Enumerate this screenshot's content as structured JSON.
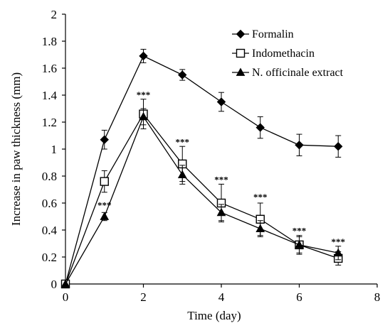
{
  "chart_data": {
    "type": "line",
    "xlabel": "Time (day)",
    "ylabel": "Increase in paw thickness (mm)",
    "xlim": [
      0,
      8
    ],
    "ylim": [
      0,
      2
    ],
    "xticks": [
      0,
      2,
      4,
      6,
      8
    ],
    "yticks": [
      0,
      0.2,
      0.4,
      0.6,
      0.8,
      1,
      1.2,
      1.4,
      1.6,
      1.8,
      2
    ],
    "ytick_labels": [
      "0",
      "0.2",
      "0.4",
      "0.6",
      "0.8",
      "1",
      "1.2",
      "1.4",
      "1.6",
      "1.8",
      "2"
    ],
    "grid": false,
    "legend_position": "top-right",
    "x": [
      0,
      1,
      2,
      3,
      4,
      5,
      6,
      7
    ],
    "series": [
      {
        "name": "Formalin",
        "marker": "diamond-filled",
        "values": [
          0,
          1.07,
          1.69,
          1.55,
          1.35,
          1.16,
          1.03,
          1.02
        ],
        "errors": [
          0,
          0.07,
          0.05,
          0.04,
          0.07,
          0.08,
          0.08,
          0.08
        ]
      },
      {
        "name": "Indomethacin",
        "marker": "square-open",
        "values": [
          0,
          0.76,
          1.26,
          0.89,
          0.6,
          0.48,
          0.29,
          0.19
        ],
        "errors": [
          0,
          0.08,
          0.11,
          0.13,
          0.14,
          0.12,
          0.07,
          0.05
        ]
      },
      {
        "name": "N. officinale extract",
        "marker": "triangle-filled",
        "values": [
          0,
          0.5,
          1.24,
          0.81,
          0.53,
          0.41,
          0.29,
          0.23
        ],
        "errors": [
          0,
          0.03,
          0.06,
          0.07,
          0.06,
          0.06,
          0.06,
          0.05
        ]
      }
    ],
    "annotations": [
      {
        "x": 1,
        "y": 0.56,
        "text": "***"
      },
      {
        "x": 2,
        "y": 1.38,
        "text": "***"
      },
      {
        "x": 3,
        "y": 1.03,
        "text": "***"
      },
      {
        "x": 4,
        "y": 0.75,
        "text": "***"
      },
      {
        "x": 5,
        "y": 0.62,
        "text": "***"
      },
      {
        "x": 6,
        "y": 0.37,
        "text": "***"
      },
      {
        "x": 7,
        "y": 0.29,
        "text": "***"
      }
    ]
  }
}
